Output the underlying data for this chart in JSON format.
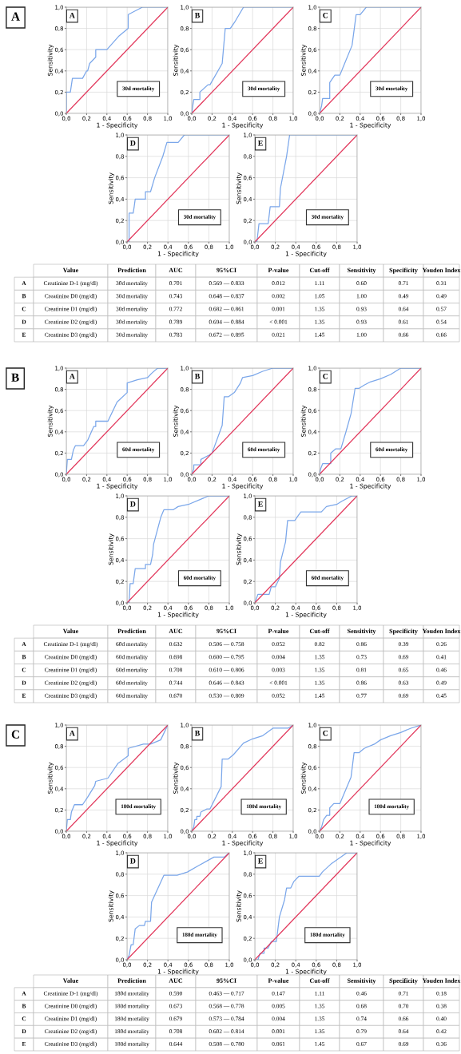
{
  "chart_data": [
    {
      "type": "line",
      "subtitle": "A",
      "title": "A",
      "xlabel": "1 - Specificity",
      "ylabel": "Sensitivity",
      "annotations": [
        "30d mortality"
      ],
      "xlim": [
        0,
        1
      ],
      "ylim": [
        0,
        1
      ],
      "xticks": [
        {
          "value": 0,
          "label": "0,0"
        },
        {
          "value": 0.2,
          "label": "0,2"
        },
        {
          "value": 0.4,
          "label": "0,4"
        },
        {
          "value": 0.6,
          "label": "0,6"
        },
        {
          "value": 0.8,
          "label": "0,8"
        },
        {
          "value": 1,
          "label": "1,0"
        }
      ],
      "yticks": [
        {
          "value": 0,
          "label": "0,0"
        },
        {
          "value": 0.2,
          "label": "0,2"
        },
        {
          "value": 0.4,
          "label": "0,4"
        },
        {
          "value": 0.6,
          "label": "0,6"
        },
        {
          "value": 0.8,
          "label": "0,8"
        },
        {
          "value": 1,
          "label": "1,0"
        }
      ],
      "grid": true,
      "series": [
        {
          "color": "#7ba7ea",
          "x": [
            0,
            0,
            0.04,
            0.06,
            0.16,
            0.2,
            0.21,
            0.23,
            0.29,
            0.29,
            0.4,
            0.52,
            0.61,
            0.61,
            0.67,
            0.75,
            1
          ],
          "values": [
            0,
            0.2,
            0.2,
            0.33,
            0.33,
            0.4,
            0.4,
            0.47,
            0.53,
            0.6,
            0.6,
            0.73,
            0.8,
            0.93,
            0.96,
            1,
            1
          ]
        },
        {
          "color": "#e2385c",
          "x": [
            0,
            1
          ],
          "values": [
            0,
            1
          ]
        }
      ]
    },
    {
      "type": "line",
      "title": "B",
      "xlabel": "1 - Specificity",
      "ylabel": "Sensitivity",
      "annotations": [
        "30d mortality"
      ],
      "xlim": [
        0,
        1
      ],
      "ylim": [
        0,
        1
      ],
      "xticks": [
        {
          "value": 0,
          "label": "0,0"
        },
        {
          "value": 0.2,
          "label": "0,2"
        },
        {
          "value": 0.4,
          "label": "0,4"
        },
        {
          "value": 0.6,
          "label": "0,6"
        },
        {
          "value": 0.8,
          "label": "0,8"
        },
        {
          "value": 1,
          "label": "1,0"
        }
      ],
      "yticks": [
        {
          "value": 0,
          "label": "0,0"
        },
        {
          "value": 0.2,
          "label": "0,2"
        },
        {
          "value": 0.4,
          "label": "0,4"
        },
        {
          "value": 0.6,
          "label": "0,6"
        },
        {
          "value": 0.8,
          "label": "0,8"
        },
        {
          "value": 1,
          "label": "1,0"
        }
      ],
      "grid": true,
      "series": [
        {
          "color": "#7ba7ea",
          "x": [
            0,
            0.01,
            0.02,
            0.08,
            0.08,
            0.16,
            0.18,
            0.3,
            0.33,
            0.38,
            0.43,
            0.51,
            1
          ],
          "values": [
            0,
            0.07,
            0.13,
            0.13,
            0.2,
            0.27,
            0.27,
            0.47,
            0.8,
            0.8,
            0.87,
            1,
            1
          ]
        },
        {
          "color": "#e2385c",
          "x": [
            0,
            1
          ],
          "values": [
            0,
            1
          ]
        }
      ]
    },
    {
      "type": "line",
      "title": "C",
      "xlabel": "1 - Specificity",
      "ylabel": "Sensitivity",
      "annotations": [
        "30d mortality"
      ],
      "xlim": [
        0,
        1
      ],
      "ylim": [
        0,
        1
      ],
      "xticks": [
        {
          "value": 0,
          "label": "0,0"
        },
        {
          "value": 0.2,
          "label": "0,2"
        },
        {
          "value": 0.4,
          "label": "0,4"
        },
        {
          "value": 0.6,
          "label": "0,6"
        },
        {
          "value": 0.8,
          "label": "0,8"
        },
        {
          "value": 1,
          "label": "1,0"
        }
      ],
      "yticks": [
        {
          "value": 0,
          "label": "0,0"
        },
        {
          "value": 0.2,
          "label": "0,2"
        },
        {
          "value": 0.4,
          "label": "0,4"
        },
        {
          "value": 0.6,
          "label": "0,6"
        },
        {
          "value": 0.8,
          "label": "0,8"
        },
        {
          "value": 1,
          "label": "1,0"
        }
      ],
      "grid": true,
      "series": [
        {
          "color": "#7ba7ea",
          "x": [
            0,
            0.02,
            0.03,
            0.1,
            0.1,
            0.15,
            0.2,
            0.23,
            0.32,
            0.36,
            0.4,
            0.46,
            1
          ],
          "values": [
            0,
            0.07,
            0.14,
            0.14,
            0.29,
            0.36,
            0.36,
            0.43,
            0.64,
            0.93,
            0.93,
            1,
            1
          ]
        },
        {
          "color": "#e2385c",
          "x": [
            0,
            1
          ],
          "values": [
            0,
            1
          ]
        }
      ]
    },
    {
      "type": "line",
      "title": "D",
      "xlabel": "1 - Specificity",
      "ylabel": "Sensitivity",
      "annotations": [
        "30d mortality"
      ],
      "xlim": [
        0,
        1
      ],
      "ylim": [
        0,
        1
      ],
      "xticks": [
        {
          "value": 0,
          "label": "0,0"
        },
        {
          "value": 0.2,
          "label": "0,2"
        },
        {
          "value": 0.4,
          "label": "0,4"
        },
        {
          "value": 0.6,
          "label": "0,6"
        },
        {
          "value": 0.8,
          "label": "0,8"
        },
        {
          "value": 1,
          "label": "1,0"
        }
      ],
      "yticks": [
        {
          "value": 0,
          "label": "0,0"
        },
        {
          "value": 0.2,
          "label": "0,2"
        },
        {
          "value": 0.4,
          "label": "0,4"
        },
        {
          "value": 0.6,
          "label": "0,6"
        },
        {
          "value": 0.8,
          "label": "0,8"
        },
        {
          "value": 1,
          "label": "1,0"
        }
      ],
      "grid": true,
      "series": [
        {
          "color": "#7ba7ea",
          "x": [
            0,
            0.02,
            0.02,
            0.06,
            0.07,
            0.08,
            0.18,
            0.18,
            0.23,
            0.27,
            0.35,
            0.39,
            0.5,
            0.56,
            1
          ],
          "values": [
            0,
            0,
            0.27,
            0.27,
            0.33,
            0.4,
            0.4,
            0.47,
            0.47,
            0.6,
            0.8,
            0.93,
            0.93,
            1,
            1
          ]
        },
        {
          "color": "#e2385c",
          "x": [
            0,
            1
          ],
          "values": [
            0,
            1
          ]
        }
      ]
    },
    {
      "type": "line",
      "title": "E",
      "xlabel": "1 - Specificity",
      "ylabel": "Sensitivity",
      "annotations": [
        "30d mortality"
      ],
      "xlim": [
        0,
        1
      ],
      "ylim": [
        0,
        1
      ],
      "xticks": [
        {
          "value": 0,
          "label": "0,0"
        },
        {
          "value": 0.2,
          "label": "0,2"
        },
        {
          "value": 0.4,
          "label": "0,4"
        },
        {
          "value": 0.6,
          "label": "0,6"
        },
        {
          "value": 0.8,
          "label": "0,8"
        },
        {
          "value": 1,
          "label": "1,0"
        }
      ],
      "yticks": [
        {
          "value": 0,
          "label": "0,0"
        },
        {
          "value": 0.2,
          "label": "0,2"
        },
        {
          "value": 0.4,
          "label": "0,4"
        },
        {
          "value": 0.6,
          "label": "0,6"
        },
        {
          "value": 0.8,
          "label": "0,8"
        },
        {
          "value": 1,
          "label": "1,0"
        }
      ],
      "grid": true,
      "series": [
        {
          "color": "#7ba7ea",
          "x": [
            0,
            0.02,
            0.04,
            0.13,
            0.15,
            0.24,
            0.25,
            0.31,
            0.34,
            1
          ],
          "values": [
            0,
            0,
            0.17,
            0.17,
            0.33,
            0.33,
            0.5,
            0.8,
            1,
            1
          ]
        },
        {
          "color": "#e2385c",
          "x": [
            0,
            1
          ],
          "values": [
            0,
            1
          ]
        }
      ]
    },
    {
      "type": "other",
      "categories": [
        null,
        "Value",
        "Prediction",
        "AUC",
        "95%CI",
        "P-value",
        "Cut-off",
        "Sensitivity",
        "Specificity",
        "Youden Index"
      ],
      "y_categories": [
        "A",
        "B",
        "C",
        "D",
        "E"
      ],
      "cell_labels": [
        [
          "Creatinine D-1 (mg/dl)",
          "30d mortality",
          "0.701",
          "0.569 — 0.833",
          "0.012",
          "1.11",
          "0.60",
          "0.71",
          "0.31"
        ],
        [
          "Creatinine D0 (mg/dl)",
          "30d mortality",
          "0.743",
          "0.648 — 0.837",
          "0.002",
          "1.05",
          "1.00",
          "0.49",
          "0.49"
        ],
        [
          "Creatinine D1 (mg/dl)",
          "30d mortality",
          "0.772",
          "0.682 — 0.861",
          "0.001",
          "1.35",
          "0.93",
          "0.64",
          "0.57"
        ],
        [
          "Creatinine D2 (mg/dl)",
          "30d mortality",
          "0.789",
          "0.694 — 0.884",
          "< 0.001",
          "1.35",
          "0.93",
          "0.61",
          "0.54"
        ],
        [
          "Creatinine D3 (mg/dl)",
          "30d mortality",
          "0.783",
          "0.672 — 0.895",
          "0.021",
          "1.45",
          "1.00",
          "0.66",
          "0.66"
        ]
      ]
    },
    {
      "type": "line",
      "subtitle": "B",
      "title": "A",
      "xlabel": "1 - Specificity",
      "ylabel": "Sensitivity",
      "annotations": [
        "60d mortality"
      ],
      "xlim": [
        0,
        1
      ],
      "ylim": [
        0,
        1
      ],
      "xticks": [
        {
          "value": 0,
          "label": "0,0"
        },
        {
          "value": 0.2,
          "label": "0,2"
        },
        {
          "value": 0.4,
          "label": "0,4"
        },
        {
          "value": 0.6,
          "label": "0,6"
        },
        {
          "value": 0.8,
          "label": "0,8"
        },
        {
          "value": 1,
          "label": "1,0"
        }
      ],
      "yticks": [
        {
          "value": 0,
          "label": "0,0"
        },
        {
          "value": 0.2,
          "label": "0,2"
        },
        {
          "value": 0.4,
          "label": "0,4"
        },
        {
          "value": 0.6,
          "label": "0,6"
        },
        {
          "value": 0.8,
          "label": "0,8"
        },
        {
          "value": 1,
          "label": "1,0"
        }
      ],
      "grid": true,
      "series": [
        {
          "color": "#7ba7ea",
          "x": [
            0,
            0.01,
            0.05,
            0.07,
            0.09,
            0.17,
            0.21,
            0.27,
            0.29,
            0.29,
            0.41,
            0.5,
            0.6,
            0.6,
            0.7,
            0.8,
            0.84,
            0.9,
            1
          ],
          "values": [
            0,
            0.14,
            0.14,
            0.23,
            0.27,
            0.27,
            0.32,
            0.45,
            0.45,
            0.5,
            0.5,
            0.68,
            0.77,
            0.86,
            0.89,
            0.91,
            0.95,
            1,
            1
          ]
        },
        {
          "color": "#e2385c",
          "x": [
            0,
            1
          ],
          "values": [
            0,
            1
          ]
        }
      ]
    },
    {
      "type": "line",
      "title": "B",
      "xlabel": "1 - Specificity",
      "ylabel": "Sensitivity",
      "annotations": [
        "60d mortality"
      ],
      "xlim": [
        0,
        1
      ],
      "ylim": [
        0,
        1
      ],
      "xticks": [
        {
          "value": 0,
          "label": "0,0"
        },
        {
          "value": 0.2,
          "label": "0,2"
        },
        {
          "value": 0.4,
          "label": "0,4"
        },
        {
          "value": 0.6,
          "label": "0,6"
        },
        {
          "value": 0.8,
          "label": "0,8"
        },
        {
          "value": 1,
          "label": "1,0"
        }
      ],
      "yticks": [
        {
          "value": 0,
          "label": "0,0"
        },
        {
          "value": 0.2,
          "label": "0,2"
        },
        {
          "value": 0.4,
          "label": "0,4"
        },
        {
          "value": 0.6,
          "label": "0,6"
        },
        {
          "value": 0.8,
          "label": "0,8"
        },
        {
          "value": 1,
          "label": "1,0"
        }
      ],
      "grid": true,
      "series": [
        {
          "color": "#7ba7ea",
          "x": [
            0,
            0.02,
            0.02,
            0.09,
            0.09,
            0.17,
            0.2,
            0.3,
            0.32,
            0.36,
            0.42,
            0.48,
            0.5,
            0.6,
            0.7,
            0.8,
            1
          ],
          "values": [
            0,
            0.05,
            0.09,
            0.09,
            0.14,
            0.18,
            0.2,
            0.46,
            0.73,
            0.73,
            0.77,
            0.86,
            0.91,
            0.93,
            0.97,
            1,
            1
          ]
        },
        {
          "color": "#e2385c",
          "x": [
            0,
            1
          ],
          "values": [
            0,
            1
          ]
        }
      ]
    },
    {
      "type": "line",
      "title": "C",
      "xlabel": "1 - Specificity",
      "ylabel": "Sensitivity",
      "annotations": [
        "60d mortality"
      ],
      "xlim": [
        0,
        1
      ],
      "ylim": [
        0,
        1
      ],
      "xticks": [
        {
          "value": 0,
          "label": "0,0"
        },
        {
          "value": 0.2,
          "label": "0,2"
        },
        {
          "value": 0.4,
          "label": "0,4"
        },
        {
          "value": 0.6,
          "label": "0,6"
        },
        {
          "value": 0.8,
          "label": "0,8"
        },
        {
          "value": 1,
          "label": "1,0"
        }
      ],
      "yticks": [
        {
          "value": 0,
          "label": "0,0"
        },
        {
          "value": 0.2,
          "label": "0,2"
        },
        {
          "value": 0.4,
          "label": "0,4"
        },
        {
          "value": 0.6,
          "label": "0,6"
        },
        {
          "value": 0.8,
          "label": "0,8"
        },
        {
          "value": 1,
          "label": "1,0"
        }
      ],
      "grid": true,
      "series": [
        {
          "color": "#7ba7ea",
          "x": [
            0,
            0.01,
            0.03,
            0.11,
            0.11,
            0.16,
            0.21,
            0.26,
            0.31,
            0.35,
            0.39,
            0.44,
            0.5,
            0.6,
            0.7,
            0.8,
            1
          ],
          "values": [
            0,
            0.05,
            0.1,
            0.1,
            0.2,
            0.24,
            0.24,
            0.4,
            0.57,
            0.81,
            0.81,
            0.84,
            0.87,
            0.9,
            0.94,
            1,
            1
          ]
        },
        {
          "color": "#e2385c",
          "x": [
            0,
            1
          ],
          "values": [
            0,
            1
          ]
        }
      ]
    },
    {
      "type": "line",
      "title": "D",
      "xlabel": "1 - Specificity",
      "ylabel": "Sensitivity",
      "annotations": [
        "60d mortality"
      ],
      "xlim": [
        0,
        1
      ],
      "ylim": [
        0,
        1
      ],
      "xticks": [
        {
          "value": 0,
          "label": "0,0"
        },
        {
          "value": 0.2,
          "label": "0,2"
        },
        {
          "value": 0.4,
          "label": "0,4"
        },
        {
          "value": 0.6,
          "label": "0,6"
        },
        {
          "value": 0.8,
          "label": "0,8"
        },
        {
          "value": 1,
          "label": "1,0"
        }
      ],
      "yticks": [
        {
          "value": 0,
          "label": "0,0"
        },
        {
          "value": 0.2,
          "label": "0,2"
        },
        {
          "value": 0.4,
          "label": "0,4"
        },
        {
          "value": 0.6,
          "label": "0,6"
        },
        {
          "value": 0.8,
          "label": "0,8"
        },
        {
          "value": 1,
          "label": "1,0"
        }
      ],
      "grid": true,
      "series": [
        {
          "color": "#7ba7ea",
          "x": [
            0,
            0.02,
            0.03,
            0.06,
            0.08,
            0.18,
            0.18,
            0.23,
            0.25,
            0.26,
            0.33,
            0.36,
            0.45,
            0.5,
            0.6,
            0.8,
            1
          ],
          "values": [
            0,
            0,
            0.18,
            0.18,
            0.32,
            0.32,
            0.36,
            0.36,
            0.45,
            0.55,
            0.8,
            0.87,
            0.87,
            0.9,
            0.92,
            1,
            1
          ]
        },
        {
          "color": "#e2385c",
          "x": [
            0,
            1
          ],
          "values": [
            0,
            1
          ]
        }
      ]
    },
    {
      "type": "line",
      "title": "E",
      "xlabel": "1 - Specificity",
      "ylabel": "Sensitivity",
      "annotations": [
        "60d mortality"
      ],
      "xlim": [
        0,
        1
      ],
      "ylim": [
        0,
        1
      ],
      "xticks": [
        {
          "value": 0,
          "label": "0,0"
        },
        {
          "value": 0.2,
          "label": "0,2"
        },
        {
          "value": 0.4,
          "label": "0,4"
        },
        {
          "value": 0.6,
          "label": "0,6"
        },
        {
          "value": 0.8,
          "label": "0,8"
        },
        {
          "value": 1,
          "label": "1,0"
        }
      ],
      "yticks": [
        {
          "value": 0,
          "label": "0,0"
        },
        {
          "value": 0.2,
          "label": "0,2"
        },
        {
          "value": 0.4,
          "label": "0,4"
        },
        {
          "value": 0.6,
          "label": "0,6"
        },
        {
          "value": 0.8,
          "label": "0,8"
        },
        {
          "value": 1,
          "label": "1,0"
        }
      ],
      "grid": true,
      "series": [
        {
          "color": "#7ba7ea",
          "x": [
            0,
            0.03,
            0.14,
            0.16,
            0.2,
            0.24,
            0.25,
            0.3,
            0.32,
            0.39,
            0.42,
            0.45,
            0.65,
            0.7,
            0.8,
            0.85,
            0.95,
            1
          ],
          "values": [
            0,
            0.08,
            0.08,
            0.15,
            0.15,
            0.23,
            0.38,
            0.57,
            0.77,
            0.77,
            0.81,
            0.85,
            0.85,
            0.9,
            0.92,
            0.95,
            1,
            1
          ]
        },
        {
          "color": "#e2385c",
          "x": [
            0,
            1
          ],
          "values": [
            0,
            1
          ]
        }
      ]
    },
    {
      "type": "other",
      "categories": [
        null,
        "Value",
        "Prediction",
        "AUC",
        "95%CI",
        "P-value",
        "Cut-off",
        "Sensitivity",
        "Specificity",
        "Youden Index"
      ],
      "y_categories": [
        "A",
        "B",
        "C",
        "D",
        "E"
      ],
      "cell_labels": [
        [
          "Creatinine D-1 (mg/dl)",
          "60d mortality",
          "0.632",
          "0.506 — 0.758",
          "0.052",
          "0.82",
          "0.86",
          "0.39",
          "0.26"
        ],
        [
          "Creatinine D0 (mg/dl)",
          "60d mortality",
          "0.698",
          "0.600 — 0.795",
          "0.004",
          "1.35",
          "0.73",
          "0.69",
          "0.41"
        ],
        [
          "Creatinine D1 (mg/dl)",
          "60d mortality",
          "0.708",
          "0.610 — 0.806",
          "0.003",
          "1.35",
          "0.81",
          "0.65",
          "0.46"
        ],
        [
          "Creatinine D2 (mg/dl)",
          "60d mortality",
          "0.744",
          "0.646 — 0.843",
          "< 0.001",
          "1.35",
          "0.86",
          "0.63",
          "0.49"
        ],
        [
          "Creatinine D3 (mg/dl)",
          "60d mortality",
          "0.670",
          "0.530 — 0.809",
          "0.052",
          "1.45",
          "0.77",
          "0.69",
          "0.45"
        ]
      ]
    },
    {
      "type": "line",
      "subtitle": "C",
      "title": "A",
      "xlabel": "1 - Specificity",
      "ylabel": "Sensitivity",
      "annotations": [
        "180d mortality"
      ],
      "xlim": [
        0,
        1
      ],
      "ylim": [
        0,
        1
      ],
      "xticks": [
        {
          "value": 0,
          "label": "0,0"
        },
        {
          "value": 0.2,
          "label": "0,2"
        },
        {
          "value": 0.4,
          "label": "0,4"
        },
        {
          "value": 0.6,
          "label": "0,6"
        },
        {
          "value": 0.8,
          "label": "0,8"
        },
        {
          "value": 1,
          "label": "1,0"
        }
      ],
      "yticks": [
        {
          "value": 0,
          "label": "0,0"
        },
        {
          "value": 0.2,
          "label": "0,2"
        },
        {
          "value": 0.4,
          "label": "0,4"
        },
        {
          "value": 0.6,
          "label": "0,6"
        },
        {
          "value": 0.8,
          "label": "0,8"
        },
        {
          "value": 1,
          "label": "1,0"
        }
      ],
      "grid": true,
      "series": [
        {
          "color": "#7ba7ea",
          "x": [
            0,
            0.01,
            0.04,
            0.05,
            0.08,
            0.16,
            0.21,
            0.28,
            0.29,
            0.41,
            0.51,
            0.61,
            0.61,
            0.76,
            0.83,
            0.93,
            1
          ],
          "values": [
            0,
            0.11,
            0.11,
            0.18,
            0.25,
            0.25,
            0.32,
            0.43,
            0.47,
            0.5,
            0.64,
            0.71,
            0.78,
            0.82,
            0.82,
            0.86,
            1
          ]
        },
        {
          "color": "#e2385c",
          "x": [
            0,
            1
          ],
          "values": [
            0,
            1
          ]
        }
      ]
    },
    {
      "type": "line",
      "title": "B",
      "xlabel": "1 - Specificity",
      "ylabel": "Sensitivity",
      "annotations": [
        "180d mortality"
      ],
      "xlim": [
        0,
        1
      ],
      "ylim": [
        0,
        1
      ],
      "xticks": [
        {
          "value": 0,
          "label": "0,0"
        },
        {
          "value": 0.2,
          "label": "0,2"
        },
        {
          "value": 0.4,
          "label": "0,4"
        },
        {
          "value": 0.6,
          "label": "0,6"
        },
        {
          "value": 0.8,
          "label": "0,8"
        },
        {
          "value": 1,
          "label": "1,0"
        }
      ],
      "yticks": [
        {
          "value": 0,
          "label": "0,0"
        },
        {
          "value": 0.2,
          "label": "0,2"
        },
        {
          "value": 0.4,
          "label": "0,4"
        },
        {
          "value": 0.6,
          "label": "0,6"
        },
        {
          "value": 0.8,
          "label": "0,8"
        },
        {
          "value": 1,
          "label": "1,0"
        }
      ],
      "grid": true,
      "series": [
        {
          "color": "#7ba7ea",
          "x": [
            0,
            0.02,
            0.03,
            0.05,
            0.05,
            0.08,
            0.09,
            0.15,
            0.18,
            0.29,
            0.3,
            0.36,
            0.41,
            0.51,
            0.6,
            0.7,
            0.8,
            0.95,
            1
          ],
          "values": [
            0,
            0.04,
            0.11,
            0.11,
            0.14,
            0.14,
            0.18,
            0.21,
            0.21,
            0.42,
            0.68,
            0.68,
            0.72,
            0.83,
            0.87,
            0.9,
            0.97,
            0.97,
            1
          ]
        },
        {
          "color": "#e2385c",
          "x": [
            0,
            1
          ],
          "values": [
            0,
            1
          ]
        }
      ]
    },
    {
      "type": "line",
      "title": "C",
      "xlabel": "1 - Specificity",
      "ylabel": "Sensitivity",
      "annotations": [
        "180d mortality"
      ],
      "xlim": [
        0,
        1
      ],
      "ylim": [
        0,
        1
      ],
      "xticks": [
        {
          "value": 0,
          "label": "0,0"
        },
        {
          "value": 0.2,
          "label": "0,2"
        },
        {
          "value": 0.4,
          "label": "0,4"
        },
        {
          "value": 0.6,
          "label": "0,6"
        },
        {
          "value": 0.8,
          "label": "0,8"
        },
        {
          "value": 1,
          "label": "1,0"
        }
      ],
      "yticks": [
        {
          "value": 0,
          "label": "0,0"
        },
        {
          "value": 0.2,
          "label": "0,2"
        },
        {
          "value": 0.4,
          "label": "0,4"
        },
        {
          "value": 0.6,
          "label": "0,6"
        },
        {
          "value": 0.8,
          "label": "0,8"
        },
        {
          "value": 1,
          "label": "1,0"
        }
      ],
      "grid": true,
      "series": [
        {
          "color": "#7ba7ea",
          "x": [
            0,
            0.02,
            0.04,
            0.07,
            0.1,
            0.1,
            0.14,
            0.2,
            0.31,
            0.34,
            0.39,
            0.44,
            0.54,
            0.6,
            0.7,
            0.8,
            0.9,
            1
          ],
          "values": [
            0,
            0.04,
            0.11,
            0.15,
            0.15,
            0.22,
            0.26,
            0.26,
            0.51,
            0.74,
            0.74,
            0.78,
            0.82,
            0.86,
            0.9,
            0.93,
            0.97,
            1
          ]
        },
        {
          "color": "#e2385c",
          "x": [
            0,
            1
          ],
          "values": [
            0,
            1
          ]
        }
      ]
    },
    {
      "type": "line",
      "title": "D",
      "xlabel": "1 - Specificity",
      "ylabel": "Sensitivity",
      "annotations": [
        "180d mortality"
      ],
      "xlim": [
        0,
        1
      ],
      "ylim": [
        0,
        1
      ],
      "xticks": [
        {
          "value": 0,
          "label": "0,0"
        },
        {
          "value": 0.2,
          "label": "0,2"
        },
        {
          "value": 0.4,
          "label": "0,4"
        },
        {
          "value": 0.6,
          "label": "0,6"
        },
        {
          "value": 0.8,
          "label": "0,8"
        },
        {
          "value": 1,
          "label": "1,0"
        }
      ],
      "yticks": [
        {
          "value": 0,
          "label": "0,0"
        },
        {
          "value": 0.2,
          "label": "0,2"
        },
        {
          "value": 0.4,
          "label": "0,4"
        },
        {
          "value": 0.6,
          "label": "0,6"
        },
        {
          "value": 0.8,
          "label": "0,8"
        },
        {
          "value": 1,
          "label": "1,0"
        }
      ],
      "grid": true,
      "series": [
        {
          "color": "#7ba7ea",
          "x": [
            0,
            0.02,
            0.04,
            0.06,
            0.08,
            0.12,
            0.17,
            0.18,
            0.23,
            0.24,
            0.36,
            0.49,
            0.59,
            0.7,
            0.85,
            0.95,
            1
          ],
          "values": [
            0,
            0.04,
            0.14,
            0.14,
            0.29,
            0.32,
            0.32,
            0.36,
            0.36,
            0.54,
            0.79,
            0.79,
            0.82,
            0.88,
            0.96,
            0.96,
            1
          ]
        },
        {
          "color": "#e2385c",
          "x": [
            0,
            1
          ],
          "values": [
            0,
            1
          ]
        }
      ]
    },
    {
      "type": "line",
      "title": "E",
      "xlabel": "1 - Specificity",
      "ylabel": "Sensitivity",
      "annotations": [
        "180d mortality"
      ],
      "xlim": [
        0,
        1
      ],
      "ylim": [
        0,
        1
      ],
      "xticks": [
        {
          "value": 0,
          "label": "0,0"
        },
        {
          "value": 0.2,
          "label": "0,2"
        },
        {
          "value": 0.4,
          "label": "0,4"
        },
        {
          "value": 0.6,
          "label": "0,6"
        },
        {
          "value": 0.8,
          "label": "0,8"
        },
        {
          "value": 1,
          "label": "1,0"
        }
      ],
      "yticks": [
        {
          "value": 0,
          "label": "0,0"
        },
        {
          "value": 0.2,
          "label": "0,2"
        },
        {
          "value": 0.4,
          "label": "0,4"
        },
        {
          "value": 0.6,
          "label": "0,6"
        },
        {
          "value": 0.8,
          "label": "0,8"
        },
        {
          "value": 1,
          "label": "1,0"
        }
      ],
      "grid": true,
      "series": [
        {
          "color": "#7ba7ea",
          "x": [
            0,
            0.03,
            0.05,
            0.09,
            0.09,
            0.13,
            0.16,
            0.21,
            0.24,
            0.29,
            0.31,
            0.35,
            0.38,
            0.43,
            0.63,
            0.66,
            0.75,
            0.9,
            1
          ],
          "values": [
            0,
            0,
            0.06,
            0.06,
            0.11,
            0.11,
            0.17,
            0.17,
            0.4,
            0.56,
            0.67,
            0.67,
            0.73,
            0.78,
            0.78,
            0.82,
            0.9,
            1,
            1
          ]
        },
        {
          "color": "#e2385c",
          "x": [
            0,
            1
          ],
          "values": [
            0,
            1
          ]
        }
      ]
    },
    {
      "type": "other",
      "categories": [
        null,
        "Value",
        "Prediction",
        "AUC",
        "95%CI",
        "P-value",
        "Cut-off",
        "Sensitivity",
        "Specificity",
        "Youden Index"
      ],
      "y_categories": [
        "A",
        "B",
        "C",
        "D",
        "E"
      ],
      "cell_labels": [
        [
          "Creatinine D-1 (mg/dl)",
          "180d mortality",
          "0.590",
          "0.463 — 0.717",
          "0.147",
          "1.11",
          "0.46",
          "0.71",
          "0.18"
        ],
        [
          "Creatinine D0 (mg/dl)",
          "180d mortality",
          "0.673",
          "0.568 — 0.778",
          "0.005",
          "1.35",
          "0.68",
          "0.70",
          "0.38"
        ],
        [
          "Creatinine D1 (mg/dl)",
          "180d mortality",
          "0.679",
          "0.573 — 0.784",
          "0.004",
          "1.35",
          "0.74",
          "0.66",
          "0.40"
        ],
        [
          "Creatinine D2 (mg/dl)",
          "180d mortality",
          "0.708",
          "0.602 — 0.814",
          "0.001",
          "1.35",
          "0.79",
          "0.64",
          "0.42"
        ],
        [
          "Creatinine D3 (mg/dl)",
          "180d mortality",
          "0.644",
          "0.508 — 0.780",
          "0.061",
          "1.45",
          "0.67",
          "0.69",
          "0.36"
        ]
      ]
    }
  ]
}
